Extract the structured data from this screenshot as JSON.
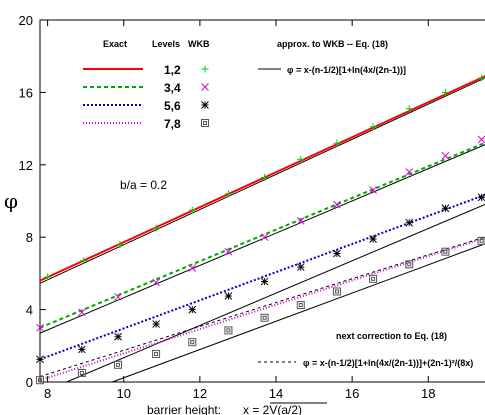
{
  "chart_data": {
    "type": "line",
    "xlim": [
      7.8,
      19.7
    ],
    "ylim": [
      0,
      20
    ],
    "x_ticks": [
      8,
      10,
      12,
      14,
      16,
      18
    ],
    "y_ticks": [
      0,
      4,
      8,
      12,
      16,
      20
    ],
    "ylabel": "φ",
    "xlabel": "barrier height:",
    "xlabel_formula": "x = 2V(a/2)",
    "annotation": "b/a = 0.2",
    "legend": {
      "header_exact": "Exact",
      "header_levels": "Levels",
      "header_wkb": "WKB",
      "approx_title": "approx. to WKB -- Eq. (18)",
      "approx_formula": "φ = x-(n-1/2)[1+ln(4x/(2n-1))]",
      "next_title": "next correction to Eq. (18)",
      "next_formula": "φ = x-(n-1/2)[1+ln(4x/(2n-1))]+(2n-1)²/(8x)"
    },
    "series": [
      {
        "name": "1,2",
        "color": "#ff0000",
        "dash": "",
        "marker": "plus",
        "marker_color": "#00cc00",
        "x": [
          7.8,
          19.7
        ],
        "y": [
          5.6,
          17.1
        ],
        "wkb_x": [
          8,
          8.95,
          9.9,
          10.85,
          11.8,
          12.75,
          13.7,
          14.65,
          15.6,
          16.55,
          17.5,
          18.45,
          19.4,
          19.7
        ],
        "wkb_y": [
          5.8,
          6.7,
          7.6,
          8.5,
          9.5,
          10.4,
          11.3,
          12.3,
          13.2,
          14.1,
          15.1,
          16.0,
          16.8,
          17.1
        ]
      },
      {
        "name": "3,4",
        "color": "#00aa00",
        "dash": "4,3",
        "marker": "cross",
        "marker_color": "#dd00dd",
        "x": [
          7.8,
          19.7
        ],
        "y": [
          3.0,
          13.4
        ],
        "wkb_x": [
          7.8,
          8.9,
          9.85,
          10.85,
          11.8,
          12.75,
          13.7,
          14.65,
          15.6,
          16.55,
          17.5,
          18.45,
          19.4,
          19.7
        ],
        "wkb_y": [
          3.0,
          3.85,
          4.7,
          5.5,
          6.3,
          7.2,
          8.0,
          8.9,
          9.8,
          10.6,
          11.6,
          12.5,
          13.4,
          13.4
        ]
      },
      {
        "name": "5,6",
        "color": "#0000cc",
        "dash": "2,2",
        "marker": "star",
        "marker_color": "#000000",
        "x": [
          7.8,
          19.7
        ],
        "y": [
          1.25,
          10.5
        ],
        "wkb_x": [
          7.8,
          8.9,
          9.85,
          10.85,
          11.8,
          12.75,
          13.7,
          14.65,
          15.6,
          16.55,
          17.5,
          18.45,
          19.4,
          19.7
        ],
        "wkb_y": [
          1.25,
          1.8,
          2.5,
          3.2,
          4.0,
          4.75,
          5.55,
          6.35,
          7.1,
          7.9,
          8.8,
          9.6,
          10.2,
          10.5
        ]
      },
      {
        "name": "7,8",
        "color": "#cc00cc",
        "dash": "1,2",
        "marker": "square",
        "marker_color": "#555555",
        "x": [
          7.8,
          19.7
        ],
        "y": [
          0.1,
          8.1
        ],
        "wkb_x": [
          7.8,
          8.9,
          9.85,
          10.85,
          11.8,
          12.75,
          13.7,
          14.65,
          15.6,
          16.55,
          17.5,
          18.45,
          19.4,
          19.7
        ],
        "wkb_y": [
          0.1,
          0.5,
          0.95,
          1.55,
          2.2,
          2.85,
          3.55,
          4.25,
          5.0,
          5.7,
          6.5,
          7.2,
          7.8,
          8.1
        ]
      }
    ],
    "approx_lines": [
      {
        "x": [
          7.8,
          19.7
        ],
        "y": [
          5.45,
          17.0
        ]
      },
      {
        "x": [
          7.8,
          19.7
        ],
        "y": [
          2.7,
          13.3
        ]
      },
      {
        "x": [
          8.5,
          19.7
        ],
        "y": [
          0.0,
          10.0
        ]
      },
      {
        "x": [
          9.7,
          19.7
        ],
        "y": [
          0.0,
          7.8
        ]
      }
    ],
    "next_lines": [
      {
        "x": [
          7.8,
          19.7
        ],
        "y": [
          0.3,
          8.15
        ]
      }
    ]
  }
}
